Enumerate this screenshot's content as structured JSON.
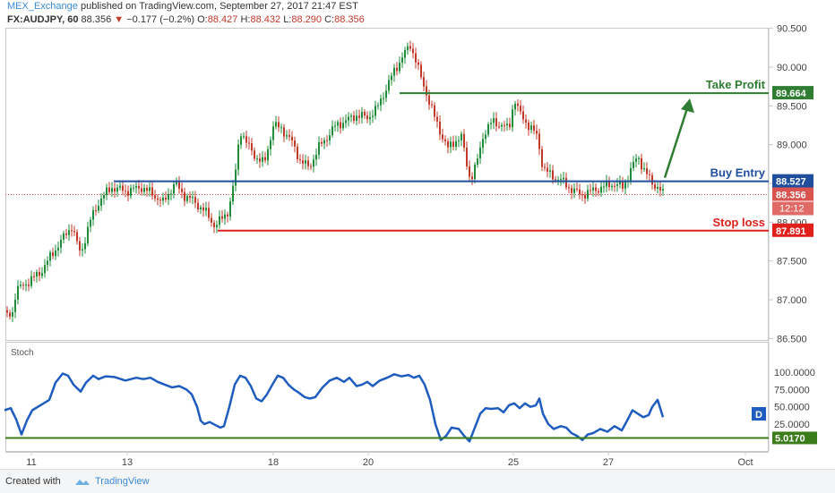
{
  "header": {
    "publisher": "MEX_Exchange",
    "published_text": "published on TradingView.com, September 27, 2017 21:47 EST",
    "symbol": "FX:AUDJPY, 60",
    "last": "88.356",
    "change": "−0.177 (−0.2%)",
    "open_label": "O:",
    "open": "88.427",
    "high_label": "H:",
    "high": "88.432",
    "low_label": "L:",
    "low": "88.290",
    "close_label": "C:",
    "close": "88.356"
  },
  "colors": {
    "up": "#1e8c3a",
    "down": "#c0392b",
    "take_profit": "#2e7d32",
    "buy_entry": "#1f4e9c",
    "stop_loss": "#e0201b",
    "stoch_line": "#1f5cbf",
    "stoch_level": "#3a7d1a",
    "current": "#d9534f"
  },
  "chart_data": [
    {
      "type": "candlestick",
      "title": "",
      "x_ticks": [
        "11",
        "13",
        "18",
        "20",
        "25",
        "27",
        "Oct"
      ],
      "y_ticks": [
        "90.500",
        "90.000",
        "89.500",
        "89.000",
        "88.500",
        "88.000",
        "87.500",
        "87.000",
        "86.500"
      ],
      "ylim": [
        86.5,
        90.6
      ],
      "price_path": [
        [
          0,
          87.12
        ],
        [
          8,
          86.78
        ],
        [
          14,
          86.85
        ],
        [
          18,
          87.12
        ],
        [
          30,
          87.22
        ],
        [
          45,
          87.35
        ],
        [
          60,
          87.62
        ],
        [
          72,
          87.82
        ],
        [
          80,
          87.95
        ],
        [
          90,
          87.58
        ],
        [
          100,
          88.0
        ],
        [
          112,
          88.3
        ],
        [
          125,
          88.45
        ],
        [
          140,
          88.4
        ],
        [
          158,
          88.45
        ],
        [
          172,
          88.35
        ],
        [
          182,
          88.25
        ],
        [
          195,
          88.5
        ],
        [
          205,
          88.35
        ],
        [
          215,
          88.28
        ],
        [
          228,
          88.15
        ],
        [
          240,
          87.95
        ],
        [
          248,
          88.05
        ],
        [
          255,
          88.15
        ],
        [
          262,
          88.55
        ],
        [
          268,
          89.2
        ],
        [
          276,
          89.0
        ],
        [
          285,
          88.85
        ],
        [
          295,
          88.75
        ],
        [
          305,
          89.25
        ],
        [
          315,
          89.2
        ],
        [
          325,
          89.05
        ],
        [
          335,
          88.8
        ],
        [
          345,
          88.7
        ],
        [
          355,
          88.95
        ],
        [
          365,
          89.1
        ],
        [
          375,
          89.25
        ],
        [
          385,
          89.3
        ],
        [
          398,
          89.38
        ],
        [
          410,
          89.35
        ],
        [
          420,
          89.45
        ],
        [
          430,
          89.7
        ],
        [
          440,
          89.95
        ],
        [
          450,
          90.15
        ],
        [
          458,
          90.28
        ],
        [
          464,
          90.1
        ],
        [
          470,
          89.85
        ],
        [
          478,
          89.6
        ],
        [
          485,
          89.35
        ],
        [
          492,
          89.15
        ],
        [
          500,
          88.95
        ],
        [
          508,
          89.05
        ],
        [
          515,
          89.1
        ],
        [
          520,
          88.8
        ],
        [
          525,
          88.55
        ],
        [
          532,
          88.75
        ],
        [
          540,
          89.15
        ],
        [
          550,
          89.3
        ],
        [
          560,
          89.25
        ],
        [
          568,
          89.2
        ],
        [
          574,
          89.6
        ],
        [
          580,
          89.4
        ],
        [
          590,
          89.25
        ],
        [
          600,
          89.1
        ],
        [
          606,
          88.7
        ],
        [
          615,
          88.6
        ],
        [
          625,
          88.55
        ],
        [
          635,
          88.45
        ],
        [
          648,
          88.35
        ],
        [
          660,
          88.4
        ],
        [
          672,
          88.45
        ],
        [
          685,
          88.5
        ],
        [
          695,
          88.45
        ],
        [
          705,
          88.7
        ],
        [
          712,
          88.85
        ],
        [
          720,
          88.65
        ],
        [
          728,
          88.5
        ],
        [
          735,
          88.45
        ],
        [
          740,
          88.36
        ]
      ],
      "levels": [
        {
          "label": "Take Profit",
          "value": "89.664",
          "color": "#2e7d32"
        },
        {
          "label": "Buy Entry",
          "value": "88.527",
          "color": "#1f4e9c"
        },
        {
          "label": "Stop loss",
          "value": "87.891",
          "color": "#e0201b"
        }
      ],
      "current_price": "88.356",
      "countdown": "12:12"
    },
    {
      "type": "line",
      "title": "Stoch",
      "y_ticks": [
        "100.0000",
        "75.0000",
        "50.0000",
        "25.0000"
      ],
      "ylim": [
        -5,
        108
      ],
      "series": [
        {
          "values": [
            [
              5,
              45
            ],
            [
              12,
              48
            ],
            [
              18,
              32
            ],
            [
              24,
              10
            ],
            [
              30,
              30
            ],
            [
              36,
              45
            ],
            [
              45,
              52
            ],
            [
              55,
              60
            ],
            [
              62,
              85
            ],
            [
              70,
              98
            ],
            [
              76,
              95
            ],
            [
              82,
              82
            ],
            [
              90,
              72
            ],
            [
              96,
              85
            ],
            [
              104,
              95
            ],
            [
              110,
              90
            ],
            [
              118,
              94
            ],
            [
              128,
              93
            ],
            [
              140,
              88
            ],
            [
              152,
              92
            ],
            [
              160,
              90
            ],
            [
              168,
              92
            ],
            [
              176,
              86
            ],
            [
              184,
              82
            ],
            [
              192,
              78
            ],
            [
              200,
              80
            ],
            [
              208,
              75
            ],
            [
              214,
              68
            ],
            [
              220,
              50
            ],
            [
              224,
              30
            ],
            [
              228,
              25
            ],
            [
              234,
              28
            ],
            [
              240,
              24
            ],
            [
              246,
              20
            ],
            [
              250,
              22
            ],
            [
              256,
              50
            ],
            [
              262,
              82
            ],
            [
              268,
              95
            ],
            [
              274,
              92
            ],
            [
              280,
              80
            ],
            [
              286,
              62
            ],
            [
              292,
              58
            ],
            [
              298,
              68
            ],
            [
              304,
              82
            ],
            [
              310,
              95
            ],
            [
              316,
              92
            ],
            [
              322,
              82
            ],
            [
              328,
              75
            ],
            [
              334,
              70
            ],
            [
              340,
              64
            ],
            [
              346,
              62
            ],
            [
              352,
              64
            ],
            [
              360,
              78
            ],
            [
              368,
              88
            ],
            [
              376,
              92
            ],
            [
              384,
              86
            ],
            [
              390,
              92
            ],
            [
              398,
              80
            ],
            [
              404,
              82
            ],
            [
              410,
              86
            ],
            [
              416,
              80
            ],
            [
              424,
              88
            ],
            [
              432,
              92
            ],
            [
              440,
              97
            ],
            [
              448,
              94
            ],
            [
              456,
              96
            ],
            [
              462,
              92
            ],
            [
              468,
              95
            ],
            [
              474,
              82
            ],
            [
              480,
              60
            ],
            [
              486,
              25
            ],
            [
              492,
              2
            ],
            [
              498,
              8
            ],
            [
              504,
              20
            ],
            [
              512,
              18
            ],
            [
              518,
              8
            ],
            [
              524,
              0
            ],
            [
              530,
              20
            ],
            [
              536,
              40
            ],
            [
              542,
              48
            ],
            [
              548,
              47
            ],
            [
              556,
              48
            ],
            [
              562,
              42
            ],
            [
              568,
              52
            ],
            [
              574,
              55
            ],
            [
              580,
              48
            ],
            [
              586,
              55
            ],
            [
              592,
              50
            ],
            [
              598,
              52
            ],
            [
              602,
              62
            ],
            [
              606,
              40
            ],
            [
              612,
              25
            ],
            [
              618,
              18
            ],
            [
              626,
              22
            ],
            [
              632,
              20
            ],
            [
              638,
              12
            ],
            [
              644,
              8
            ],
            [
              650,
              2
            ],
            [
              656,
              10
            ],
            [
              662,
              12
            ],
            [
              670,
              18
            ],
            [
              678,
              14
            ],
            [
              686,
              22
            ],
            [
              694,
              16
            ],
            [
              700,
              30
            ],
            [
              706,
              45
            ],
            [
              712,
              40
            ],
            [
              718,
              35
            ],
            [
              724,
              38
            ],
            [
              728,
              50
            ],
            [
              734,
              60
            ],
            [
              740,
              35
            ]
          ]
        }
      ],
      "level": "5.0170",
      "level_value": 5.017,
      "badge": "D"
    }
  ],
  "footer": {
    "created_with": "Created with",
    "brand": "TradingView"
  }
}
